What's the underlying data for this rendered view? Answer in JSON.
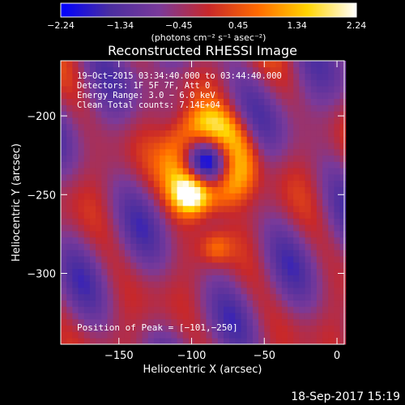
{
  "chart_data": {
    "type": "heatmap",
    "title": "Reconstructed RHESSI Image",
    "xlabel": "Heliocentric X (arcsec)",
    "ylabel": "Heliocentric Y (arcsec)",
    "xlim": [
      -190,
      5
    ],
    "ylim": [
      -345,
      -165
    ],
    "xticks": [
      -150,
      -100,
      -50,
      0
    ],
    "xtick_labels": [
      "−150",
      "−100",
      "−50",
      "0"
    ],
    "yticks": [
      -200,
      -250,
      -300
    ],
    "ytick_labels": [
      "−200",
      "−250",
      "−300"
    ],
    "colorbar": {
      "range": [
        -2.24,
        2.24
      ],
      "ticks": [
        -2.24,
        -1.34,
        -0.45,
        0.45,
        1.34,
        2.24
      ],
      "tick_labels": [
        "−2.24",
        "−1.34",
        "−0.45",
        "0.45",
        "1.34",
        "2.24"
      ],
      "units_label": "(photons cm⁻² s⁻¹ asec⁻²)",
      "colormap": [
        "#0000ff",
        "#4b2ea0",
        "#7a3a9a",
        "#c8282a",
        "#ff6a00",
        "#ffd400",
        "#ffffff"
      ]
    },
    "info_lines": [
      "19−Oct−2015 03:34:40.000 to 03:44:40.000",
      "Detectors: 1F 5F 7F, Att 0",
      "Energy Range: 3.0 − 6.0 keV",
      "Clean    Total counts: 7.14E+04"
    ],
    "peak_label": "Position of Peak = [−101,−250]",
    "peak": {
      "x": -101,
      "y": -250,
      "value": 2.24
    },
    "sources": [
      {
        "name": "ring",
        "x": -88,
        "y": -228,
        "radius": 22,
        "width": 9,
        "amp": 1.6
      },
      {
        "name": "peak",
        "x": -101,
        "y": -250,
        "sigma": 9,
        "amp": 2.24
      },
      {
        "name": "south-blob",
        "x": -83,
        "y": -284,
        "sigma": 7,
        "amp": 0.9
      }
    ]
  },
  "footer": {
    "timestamp": "18-Sep-2017 15:19"
  }
}
